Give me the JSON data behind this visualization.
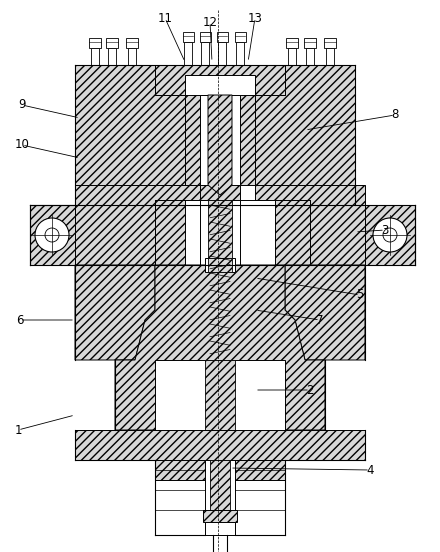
{
  "background_color": "#ffffff",
  "line_color": "#000000",
  "fig_width": 4.4,
  "fig_height": 5.52,
  "dpi": 100,
  "hatch_density": "////",
  "labels_data": [
    [
      18,
      430,
      "1",
      75,
      415
    ],
    [
      310,
      390,
      "2",
      255,
      390
    ],
    [
      385,
      230,
      "3",
      355,
      232
    ],
    [
      370,
      470,
      "4",
      230,
      468
    ],
    [
      360,
      295,
      "5",
      255,
      278
    ],
    [
      20,
      320,
      "6",
      75,
      320
    ],
    [
      320,
      320,
      "7",
      255,
      310
    ],
    [
      395,
      115,
      "8",
      305,
      130
    ],
    [
      22,
      105,
      "9",
      80,
      118
    ],
    [
      22,
      145,
      "10",
      80,
      158
    ],
    [
      165,
      18,
      "11",
      185,
      62
    ],
    [
      210,
      22,
      "12",
      212,
      62
    ],
    [
      255,
      18,
      "13",
      248,
      62
    ]
  ]
}
